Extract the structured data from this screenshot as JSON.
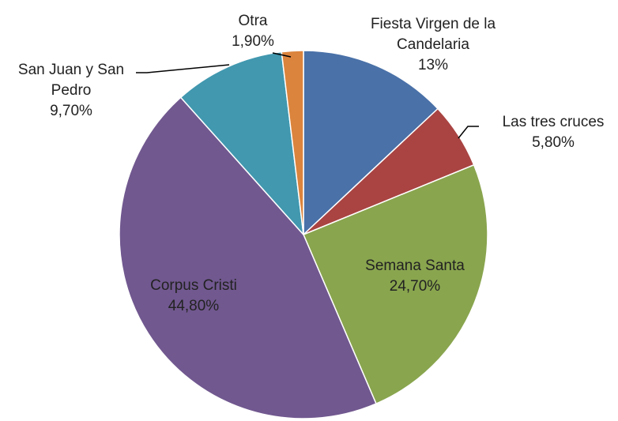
{
  "chart_data": {
    "type": "pie",
    "categories": [
      "Fiesta Virgen de la Candelaria",
      "Las tres cruces",
      "Semana Santa",
      "Corpus Cristi",
      "San Juan y San Pedro",
      "Otra"
    ],
    "values": [
      13,
      5.8,
      24.7,
      44.8,
      9.7,
      1.9
    ],
    "value_labels": [
      "13%",
      "5,80%",
      "24,70%",
      "44,80%",
      "9,70%",
      "1,90%"
    ],
    "colors": [
      "#4a71a8",
      "#a94442",
      "#89a54e",
      "#71588f",
      "#4198af",
      "#db843d"
    ]
  }
}
